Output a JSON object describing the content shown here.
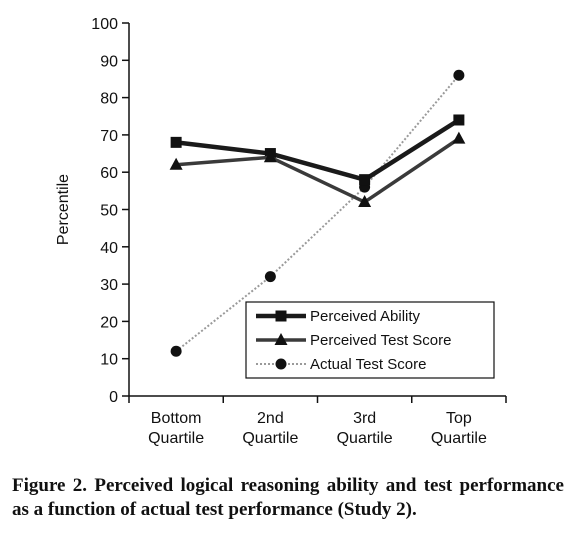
{
  "chart_data": {
    "type": "line",
    "ylabel": "Percentile",
    "ylim": [
      0,
      100
    ],
    "yticks": [
      0,
      10,
      20,
      30,
      40,
      50,
      60,
      70,
      80,
      90,
      100
    ],
    "categories": [
      [
        "Bottom",
        "Quartile"
      ],
      [
        "2nd",
        "Quartile"
      ],
      [
        "3rd",
        "Quartile"
      ],
      [
        "Top",
        "Quartile"
      ]
    ],
    "series": [
      {
        "name": "Perceived Ability",
        "marker": "square",
        "color": "#1a1a1a",
        "style": "thick",
        "values": [
          68,
          65,
          58,
          74
        ]
      },
      {
        "name": "Perceived Test Score",
        "marker": "triangle",
        "color": "#3a3a3a",
        "style": "medium",
        "values": [
          62,
          64,
          52,
          69
        ]
      },
      {
        "name": "Actual Test Score",
        "marker": "circle",
        "color": "#9a9a9a",
        "style": "dotted",
        "values": [
          12,
          32,
          56,
          86
        ]
      }
    ],
    "legend_position": "bottom-right",
    "grid": false
  },
  "caption": "Figure 2. Perceived logical reasoning ability and test performance as a function of actual test performance (Study 2)."
}
